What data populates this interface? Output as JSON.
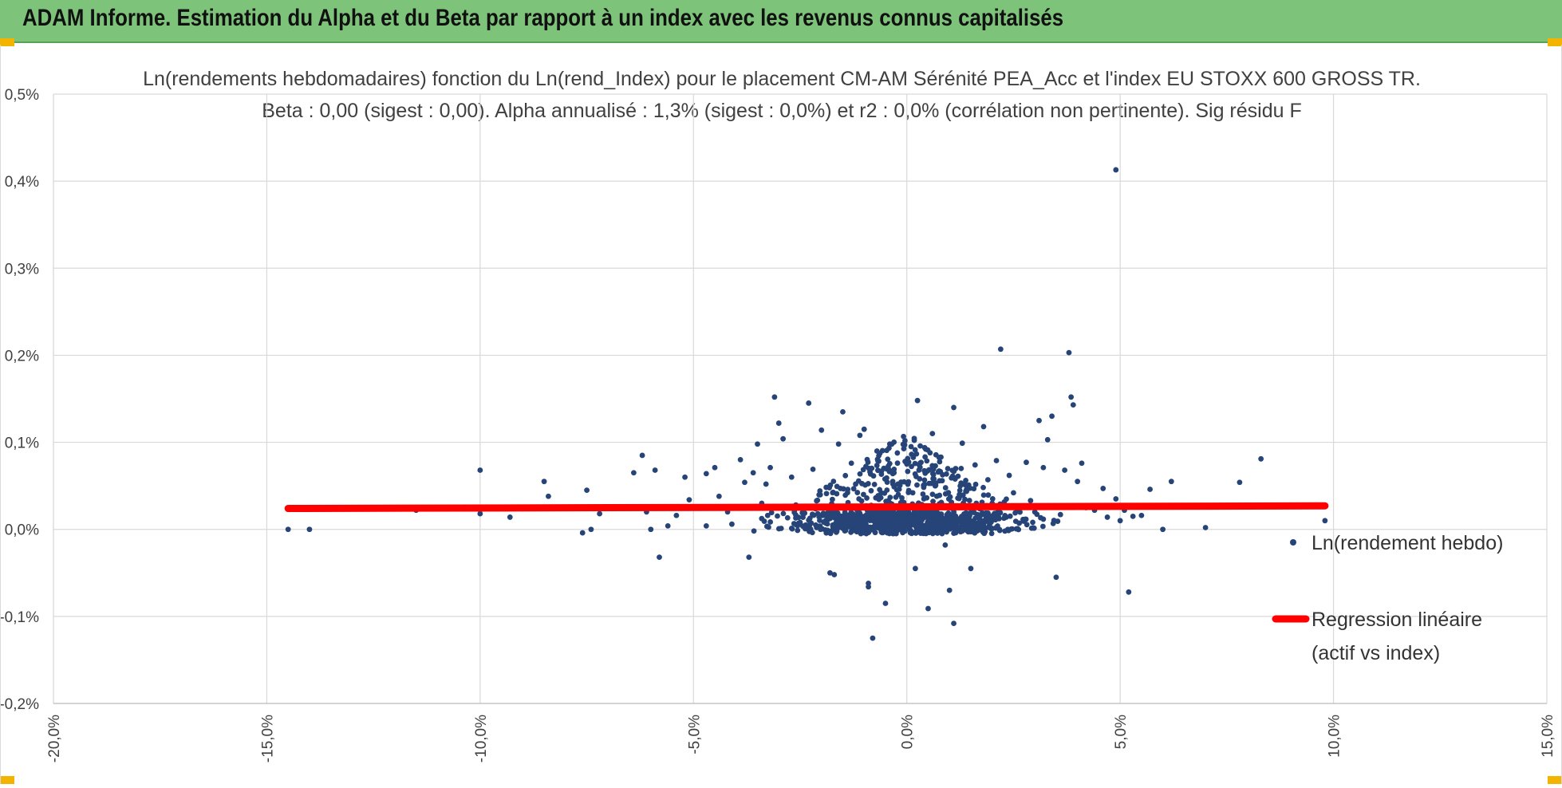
{
  "header": {
    "title": "ADAM Informe. Estimation du Alpha et du Beta par rapport à un index avec les revenus connus capitalisés",
    "bg_color": "#7dc47a",
    "corner_color": "#f2b400"
  },
  "chart_data": {
    "type": "scatter",
    "title_line1": "Ln(rendements hebdomadaires) fonction du Ln(rend_Index) pour le placement CM-AM Sérénité PEA_Acc et l'index EU STOXX 600 GROSS TR.",
    "title_line2": "Beta : 0,00 (sigest : 0,00). Alpha annualisé : 1,3% (sigest : 0,0%) et r2 : 0,0% (corrélation non pertinente). Sig résidu F",
    "xlabel": "",
    "ylabel": "",
    "xlim": [
      -20,
      15
    ],
    "ylim": [
      -0.2,
      0.5
    ],
    "x_unit": "%",
    "y_unit": "%",
    "x_ticks": [
      "-20,0%",
      "-15,0%",
      "-10,0%",
      "-5,0%",
      "0,0%",
      "5,0%",
      "10,0%",
      "15,0%"
    ],
    "y_ticks": [
      "0,5%",
      "0,4%",
      "0,3%",
      "0,2%",
      "0,1%",
      "0,0%",
      "-0,1%",
      "-0,2%"
    ],
    "grid": true,
    "legend_position": "right",
    "series": [
      {
        "name": "Ln(rendement hebdo)",
        "kind": "scatter",
        "color": "#264478",
        "points": [
          [
            -14.5,
            0.0
          ],
          [
            -14.0,
            0.0
          ],
          [
            -11.5,
            0.022
          ],
          [
            -10.0,
            0.068
          ],
          [
            -10.0,
            0.018
          ],
          [
            -9.3,
            0.014
          ],
          [
            -8.5,
            0.055
          ],
          [
            -8.4,
            0.038
          ],
          [
            -7.6,
            -0.004
          ],
          [
            -7.5,
            0.045
          ],
          [
            -7.4,
            0.0
          ],
          [
            -7.2,
            0.018
          ],
          [
            -6.4,
            0.065
          ],
          [
            -6.2,
            0.085
          ],
          [
            -6.1,
            0.02
          ],
          [
            -6.0,
            0.0
          ],
          [
            -5.9,
            0.068
          ],
          [
            -5.8,
            -0.032
          ],
          [
            -5.6,
            0.004
          ],
          [
            -5.4,
            0.016
          ],
          [
            -5.2,
            0.06
          ],
          [
            -5.1,
            0.034
          ],
          [
            -4.9,
            0.025
          ],
          [
            -4.7,
            0.004
          ],
          [
            -4.7,
            0.064
          ],
          [
            -4.5,
            0.071
          ],
          [
            -4.4,
            0.038
          ],
          [
            -4.2,
            0.02
          ],
          [
            -4.1,
            0.006
          ],
          [
            -3.9,
            0.08
          ],
          [
            -3.8,
            0.054
          ],
          [
            -3.7,
            -0.032
          ],
          [
            -3.6,
            0.065
          ],
          [
            -3.5,
            0.098
          ],
          [
            -3.4,
            0.03
          ],
          [
            -3.3,
            0.052
          ],
          [
            -3.2,
            0.071
          ],
          [
            -3.0,
            0.122
          ],
          [
            -2.9,
            0.104
          ],
          [
            -3.1,
            0.152
          ],
          [
            -2.7,
            0.06
          ],
          [
            -2.6,
            0.028
          ],
          [
            -2.5,
            0.008
          ],
          [
            -2.3,
            0.145
          ],
          [
            -2.2,
            0.069
          ],
          [
            -2.0,
            0.114
          ],
          [
            -1.8,
            -0.05
          ],
          [
            -1.7,
            -0.052
          ],
          [
            -1.6,
            0.098
          ],
          [
            -1.5,
            0.135
          ],
          [
            -1.4,
            0.025
          ],
          [
            -1.3,
            0.076
          ],
          [
            -1.2,
            0.052
          ],
          [
            -1.1,
            0.108
          ],
          [
            -1.0,
            0.115
          ],
          [
            -0.9,
            -0.062
          ],
          [
            -0.9,
            -0.066
          ],
          [
            -0.8,
            -0.125
          ],
          [
            -0.7,
            0.09
          ],
          [
            -0.6,
            0.042
          ],
          [
            -0.5,
            -0.085
          ],
          [
            -0.4,
            0.098
          ],
          [
            -0.3,
            0.065
          ],
          [
            -0.2,
            0.04
          ],
          [
            -0.1,
            0.012
          ],
          [
            0.0,
            0.075
          ],
          [
            0.1,
            0.095
          ],
          [
            0.2,
            -0.045
          ],
          [
            0.25,
            0.148
          ],
          [
            0.3,
            0.058
          ],
          [
            0.4,
            0.035
          ],
          [
            0.5,
            -0.091
          ],
          [
            0.6,
            0.11
          ],
          [
            0.7,
            0.022
          ],
          [
            0.8,
            0.083
          ],
          [
            0.9,
            -0.018
          ],
          [
            1.0,
            -0.07
          ],
          [
            1.1,
            -0.108
          ],
          [
            1.1,
            0.14
          ],
          [
            1.2,
            0.061
          ],
          [
            1.3,
            0.099
          ],
          [
            1.4,
            0.046
          ],
          [
            1.5,
            -0.045
          ],
          [
            1.6,
            0.074
          ],
          [
            1.7,
            0.012
          ],
          [
            1.8,
            0.118
          ],
          [
            1.9,
            0.057
          ],
          [
            2.0,
            0.03
          ],
          [
            2.1,
            0.079
          ],
          [
            2.2,
            0.207
          ],
          [
            2.3,
            0.015
          ],
          [
            2.4,
            0.062
          ],
          [
            2.5,
            0.042
          ],
          [
            2.6,
            0.022
          ],
          [
            2.8,
            0.077
          ],
          [
            2.9,
            0.033
          ],
          [
            3.0,
            0.02
          ],
          [
            3.1,
            0.125
          ],
          [
            3.2,
            0.071
          ],
          [
            3.3,
            0.103
          ],
          [
            3.4,
            0.13
          ],
          [
            3.5,
            -0.055
          ],
          [
            3.6,
            0.017
          ],
          [
            3.7,
            0.068
          ],
          [
            3.8,
            0.203
          ],
          [
            3.85,
            0.152
          ],
          [
            3.9,
            0.143
          ],
          [
            4.0,
            0.055
          ],
          [
            4.1,
            0.076
          ],
          [
            4.2,
            0.025
          ],
          [
            4.4,
            0.022
          ],
          [
            4.6,
            0.047
          ],
          [
            4.7,
            0.014
          ],
          [
            4.9,
            0.413
          ],
          [
            4.9,
            0.035
          ],
          [
            5.0,
            0.01
          ],
          [
            5.1,
            0.022
          ],
          [
            5.2,
            -0.072
          ],
          [
            5.3,
            0.015
          ],
          [
            5.5,
            0.016
          ],
          [
            5.7,
            0.046
          ],
          [
            6.0,
            0.0
          ],
          [
            6.2,
            0.055
          ],
          [
            7.0,
            0.002
          ],
          [
            7.8,
            0.054
          ],
          [
            8.3,
            0.081
          ],
          [
            9.8,
            0.01
          ]
        ],
        "cloud": {
          "x_center": 0.0,
          "x_spread": 1.3,
          "y_base": 0.0,
          "y_spread": 0.11,
          "count": 1050
        }
      },
      {
        "name": "Regression linéaire (actif vs index)",
        "kind": "line",
        "color": "#ff0000",
        "points": [
          [
            -14.5,
            0.024
          ],
          [
            9.8,
            0.027
          ]
        ]
      }
    ]
  }
}
